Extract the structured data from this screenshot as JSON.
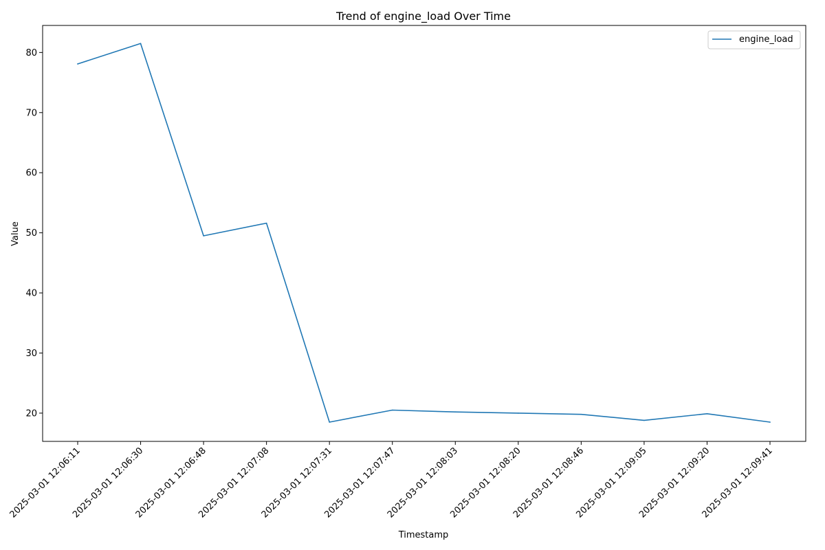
{
  "chart_data": {
    "type": "line",
    "title": "Trend of engine_load Over Time",
    "xlabel": "Timestamp",
    "ylabel": "Value",
    "categories": [
      "2025-03-01 12:06:11",
      "2025-03-01 12:06:30",
      "2025-03-01 12:06:48",
      "2025-03-01 12:07:08",
      "2025-03-01 12:07:31",
      "2025-03-01 12:07:47",
      "2025-03-01 12:08:03",
      "2025-03-01 12:08:20",
      "2025-03-01 12:08:46",
      "2025-03-01 12:09:05",
      "2025-03-01 12:09:20",
      "2025-03-01 12:09:41"
    ],
    "series": [
      {
        "name": "engine_load",
        "color": "#1f77b4",
        "values": [
          78.1,
          81.5,
          49.5,
          51.6,
          18.5,
          20.5,
          20.2,
          20.0,
          19.8,
          18.8,
          19.9,
          18.5
        ]
      }
    ],
    "ylim": [
      15.3,
      84.5
    ],
    "yticks": [
      20,
      30,
      40,
      50,
      60,
      70,
      80
    ],
    "grid": false,
    "legend_position": "top-right"
  }
}
